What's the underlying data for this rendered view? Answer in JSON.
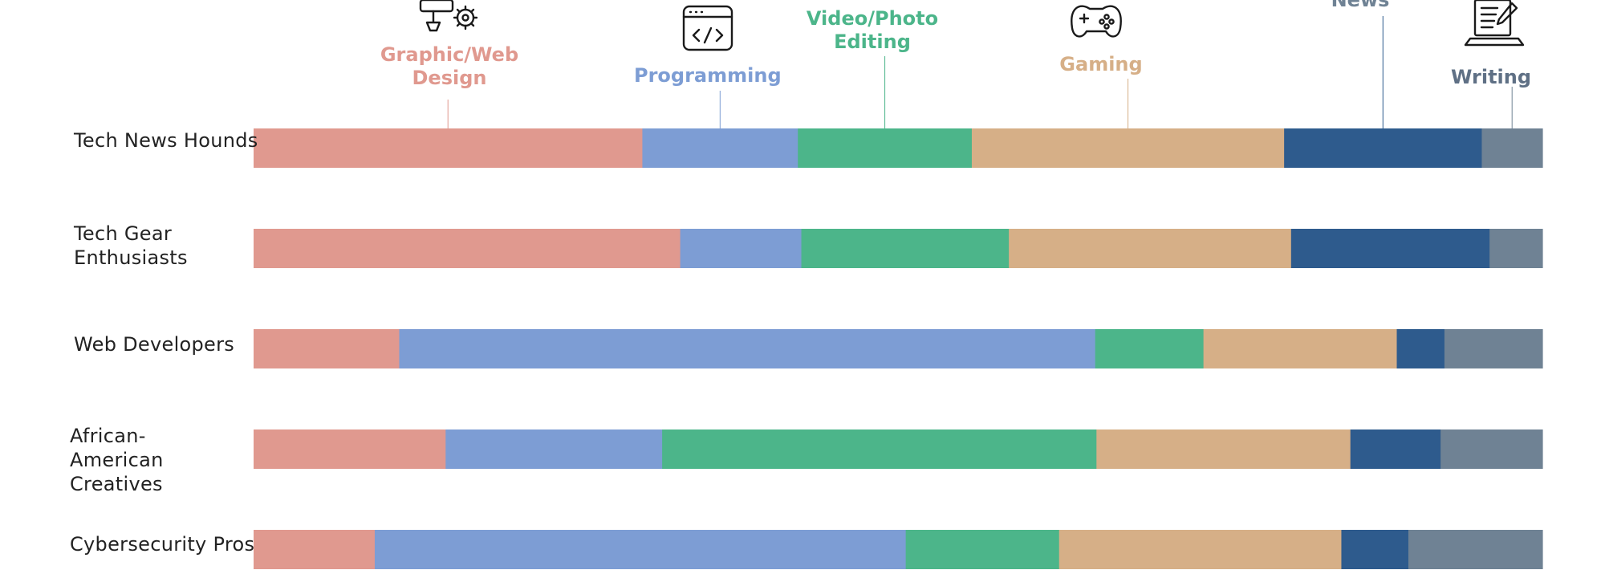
{
  "chart_data": {
    "type": "bar",
    "orientation": "horizontal",
    "stacked": true,
    "normalized_to_100": true,
    "title": "",
    "xlabel": "",
    "ylabel": "",
    "xlim": [
      0,
      100
    ],
    "grid": false,
    "categories": [
      "Tech News Hounds",
      "Tech Gear Enthusiasts",
      "Web Developers",
      "African-American Creatives",
      "Cybersecurity Pros"
    ],
    "series": [
      {
        "name": "Graphic/Web Design",
        "icon": "design-icon",
        "color": "#E0998F",
        "values": [
          29.5,
          33.1,
          11.3,
          14.9,
          9.4
        ]
      },
      {
        "name": "Programming",
        "icon": "code-window-icon",
        "color": "#7D9DD4",
        "values": [
          11.8,
          9.4,
          54.0,
          16.8,
          41.2
        ]
      },
      {
        "name": "Video/Photo Editing",
        "icon": "camera-icon",
        "color": "#4CB58A",
        "values": [
          13.2,
          16.1,
          8.4,
          33.7,
          11.9
        ]
      },
      {
        "name": "Gaming",
        "icon": "gamepad-icon",
        "color": "#D6AF87",
        "values": [
          23.7,
          21.9,
          15.0,
          19.7,
          21.9
        ]
      },
      {
        "name": "News",
        "icon": "news-icon",
        "color": "#2E5B8D",
        "values": [
          15.0,
          15.4,
          3.7,
          7.0,
          5.2
        ]
      },
      {
        "name": "Writing",
        "icon": "laptop-writing-icon",
        "color": "#6F8294",
        "values": [
          4.6,
          4.1,
          7.6,
          7.9,
          10.4
        ]
      }
    ]
  }
}
